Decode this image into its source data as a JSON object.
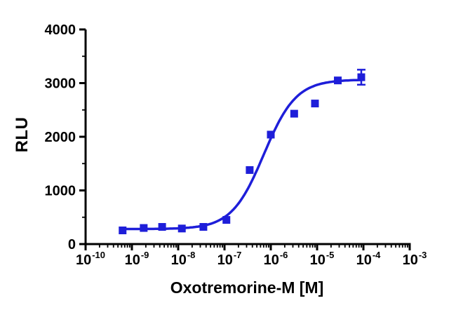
{
  "chart_data": {
    "type": "scatter",
    "title": "",
    "xlabel": "Oxotremorine-M [M]",
    "ylabel": "RLU",
    "x_axis": {
      "scale": "log10",
      "min_exponent": -10,
      "max_exponent": -3,
      "tick_base": "10",
      "tick_exponents": [
        -10,
        -9,
        -8,
        -7,
        -6,
        -5,
        -4,
        -3
      ],
      "minor_ticks": "log positions 2-9 each decade"
    },
    "y_axis": {
      "min": 0,
      "max": 4000,
      "ticks": [
        0,
        1000,
        2000,
        3000,
        4000
      ],
      "minor_tick_step": 500
    },
    "series": [
      {
        "name": "Oxotremorine-M",
        "marker": "square",
        "marker_size": 11,
        "color": "#1e1ed9",
        "points": [
          {
            "x": 6.3e-10,
            "y": 255,
            "y_err": 0
          },
          {
            "x": 1.8e-09,
            "y": 300,
            "y_err": 0
          },
          {
            "x": 4.5e-09,
            "y": 320,
            "y_err": 0
          },
          {
            "x": 1.2e-08,
            "y": 290,
            "y_err": 0
          },
          {
            "x": 3.5e-08,
            "y": 320,
            "y_err": 0
          },
          {
            "x": 1.1e-07,
            "y": 450,
            "y_err": 0
          },
          {
            "x": 3.5e-07,
            "y": 1380,
            "y_err": 0
          },
          {
            "x": 1e-06,
            "y": 2040,
            "y_err": 0
          },
          {
            "x": 3.2e-06,
            "y": 2430,
            "y_err": 0
          },
          {
            "x": 9e-06,
            "y": 2620,
            "y_err": 0
          },
          {
            "x": 2.8e-05,
            "y": 3050,
            "y_err": 0
          },
          {
            "x": 9e-05,
            "y": 3110,
            "y_err": 140
          }
        ]
      }
    ],
    "fit_curve": {
      "model": "sigmoidal dose-response",
      "bottom": 280,
      "top": 3065,
      "log_ec50": -6.15,
      "hill_slope": 1.25,
      "color": "#1e1ed9",
      "x_range_log": [
        -9.25,
        -4.03
      ]
    }
  },
  "style": {
    "background": "#ffffff",
    "axis_color": "#000000"
  }
}
